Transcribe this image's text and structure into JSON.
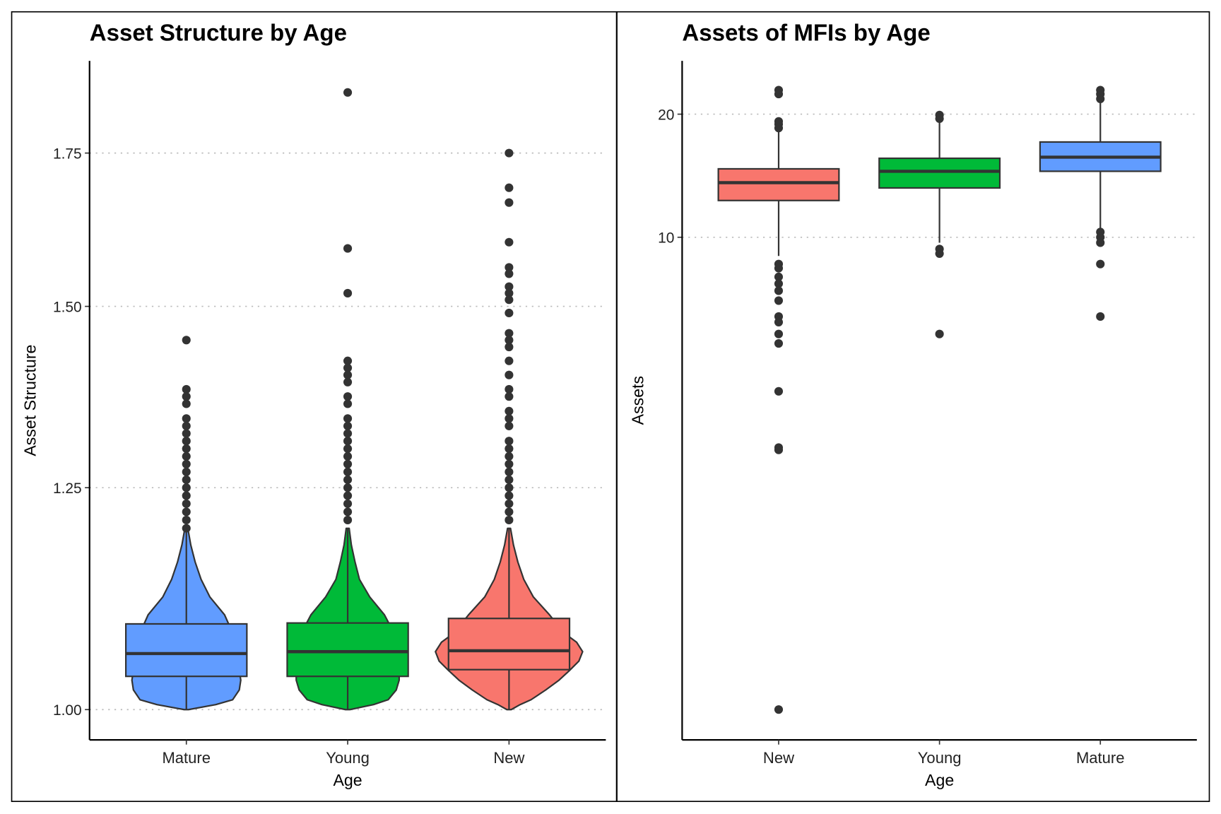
{
  "chart_data": [
    {
      "type": "violin",
      "title": "Asset Structure by Age",
      "x_label": "Age",
      "y_label": "Asset Structure",
      "categories": [
        "Mature",
        "Young",
        "New"
      ],
      "colors": [
        "#619CFF",
        "#00BA38",
        "#F8766D"
      ],
      "ylim": [
        0.97,
        1.92
      ],
      "yticks": [
        {
          "value": 1.0,
          "label": "1.00"
        },
        1.25,
        {
          "value": 1.5,
          "label": "1.50"
        },
        1.75
      ],
      "log_scale": true,
      "grid": true,
      "boxes": [
        {
          "low": 1.0,
          "q1": 1.034,
          "median": 1.058,
          "q3": 1.09,
          "high": 1.198,
          "outliers": [
            1.45,
            1.38,
            1.37,
            1.36,
            1.34,
            1.33,
            1.32,
            1.31,
            1.3,
            1.29,
            1.28,
            1.27,
            1.26,
            1.25,
            1.24,
            1.23,
            1.22,
            1.21,
            1.2
          ],
          "violin": {
            "y": [
              1.0,
              1.005,
              1.01,
              1.02,
              1.03,
              1.04,
              1.06,
              1.08,
              1.1,
              1.12,
              1.14,
              1.16,
              1.18,
              1.2
            ],
            "density": [
              0.03,
              0.4,
              0.63,
              0.72,
              0.74,
              0.72,
              0.68,
              0.63,
              0.52,
              0.32,
              0.2,
              0.12,
              0.06,
              0.02
            ]
          }
        },
        {
          "low": 1.0,
          "q1": 1.034,
          "median": 1.06,
          "q3": 1.091,
          "high": 1.2,
          "outliers": [
            1.86,
            1.59,
            1.52,
            1.42,
            1.41,
            1.4,
            1.39,
            1.37,
            1.36,
            1.34,
            1.33,
            1.32,
            1.31,
            1.3,
            1.29,
            1.28,
            1.27,
            1.26,
            1.25,
            1.24,
            1.23,
            1.22,
            1.21
          ],
          "violin": {
            "y": [
              1.0,
              1.005,
              1.01,
              1.02,
              1.03,
              1.04,
              1.06,
              1.08,
              1.1,
              1.12,
              1.14,
              1.16,
              1.18,
              1.2
            ],
            "density": [
              0.03,
              0.35,
              0.55,
              0.66,
              0.7,
              0.7,
              0.68,
              0.63,
              0.5,
              0.3,
              0.16,
              0.1,
              0.05,
              0.02
            ]
          }
        },
        {
          "low": 1.0,
          "q1": 1.041,
          "median": 1.061,
          "q3": 1.096,
          "high": 1.2,
          "outliers": [
            1.75,
            1.69,
            1.665,
            1.6,
            1.56,
            1.55,
            1.53,
            1.52,
            1.51,
            1.49,
            1.46,
            1.45,
            1.44,
            1.42,
            1.4,
            1.38,
            1.37,
            1.35,
            1.34,
            1.33,
            1.31,
            1.3,
            1.29,
            1.28,
            1.27,
            1.26,
            1.25,
            1.24,
            1.23,
            1.22,
            1.21
          ],
          "violin": {
            "y": [
              1.0,
              1.005,
              1.01,
              1.02,
              1.03,
              1.04,
              1.05,
              1.06,
              1.07,
              1.08,
              1.1,
              1.12,
              1.14,
              1.16,
              1.18,
              1.2
            ],
            "density": [
              0.03,
              0.15,
              0.3,
              0.5,
              0.68,
              0.82,
              0.95,
              1.0,
              0.92,
              0.75,
              0.55,
              0.33,
              0.2,
              0.12,
              0.06,
              0.02
            ]
          }
        }
      ]
    },
    {
      "type": "boxplot",
      "title": "Assets of MFIs by Age",
      "x_label": "Age",
      "y_label": "Assets",
      "categories": [
        "New",
        "Young",
        "Mature"
      ],
      "colors": [
        "#F8766D",
        "#00BA38",
        "#619CFF"
      ],
      "ylim": [
        0.59,
        27
      ],
      "yticks": [
        10,
        20
      ],
      "log_scale": true,
      "grid": true,
      "boxes": [
        {
          "low": 9.0,
          "q1": 12.3,
          "median": 13.6,
          "q3": 14.7,
          "high": 18.1,
          "outliers": [
            22.9,
            22.4,
            19.2,
            18.9,
            18.5,
            8.6,
            8.4,
            8.0,
            7.7,
            7.4,
            7.0,
            6.4,
            6.2,
            5.8,
            5.5,
            4.2,
            3.06,
            3.02,
            0.7
          ]
        },
        {
          "low": 9.7,
          "q1": 13.2,
          "median": 14.5,
          "q3": 15.6,
          "high": 19.3,
          "outliers": [
            19.9,
            19.5,
            9.36,
            9.12,
            5.8
          ]
        },
        {
          "low": 10.4,
          "q1": 14.5,
          "median": 15.7,
          "q3": 17.1,
          "high": 21.4,
          "outliers": [
            22.9,
            22.4,
            21.8,
            10.3,
            10.0,
            9.7,
            8.6,
            6.4
          ]
        }
      ]
    }
  ]
}
